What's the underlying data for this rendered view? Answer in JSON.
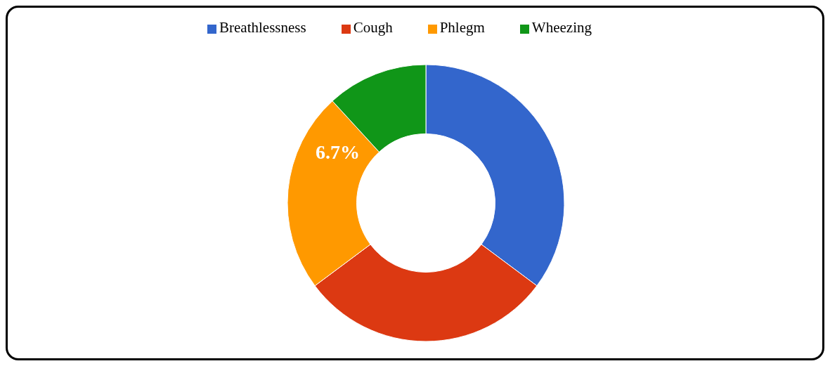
{
  "chart_data": {
    "type": "donut",
    "categories": [
      "Breathlessness",
      "Cough",
      "Phlegm",
      "Wheezing"
    ],
    "values": [
      35.2,
      29.6,
      23.4,
      11.8
    ],
    "colors": [
      "#3366cc",
      "#dc3912",
      "#ff9900",
      "#109618"
    ],
    "legend": "top",
    "annotations": [
      "6.7%"
    ]
  }
}
